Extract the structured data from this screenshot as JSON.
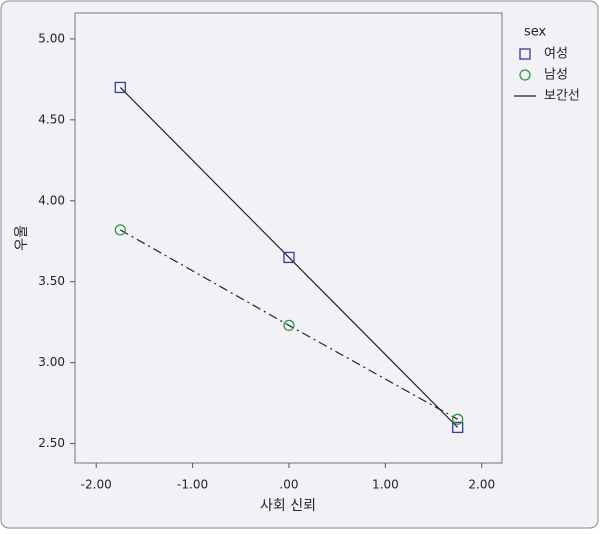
{
  "chart_data": {
    "type": "line",
    "x_label": "사회 신뢰",
    "y_label": "우울",
    "x": [
      -1.75,
      0,
      1.75
    ],
    "series": [
      {
        "name": "여성",
        "color": "#3b3b8f",
        "marker": "square",
        "line_style": "solid",
        "values": [
          4.7,
          3.65,
          2.6
        ]
      },
      {
        "name": "남성",
        "color": "#2e9a44",
        "marker": "circle",
        "line_style": "dashdot",
        "values": [
          3.82,
          3.23,
          2.65
        ]
      }
    ],
    "legend_title": "sex",
    "legend_extra": "보간선",
    "xlim": [
      -2.22,
      2.21
    ],
    "xticks": [
      {
        "value": -2,
        "label": "-2.00"
      },
      {
        "value": -1,
        "label": "-1.00"
      },
      {
        "value": 0,
        "label": ".00"
      },
      {
        "value": 1,
        "label": "1.00"
      },
      {
        "value": 2,
        "label": "2.00"
      }
    ],
    "ylim": [
      2.38,
      5.16
    ],
    "yticks": [
      {
        "value": 2.5,
        "label": "2.50"
      },
      {
        "value": 3,
        "label": "3.00"
      },
      {
        "value": 3.5,
        "label": "3.50"
      },
      {
        "value": 4,
        "label": "4.00"
      },
      {
        "value": 4.5,
        "label": "4.50"
      },
      {
        "value": 5,
        "label": "5.00"
      }
    ]
  }
}
